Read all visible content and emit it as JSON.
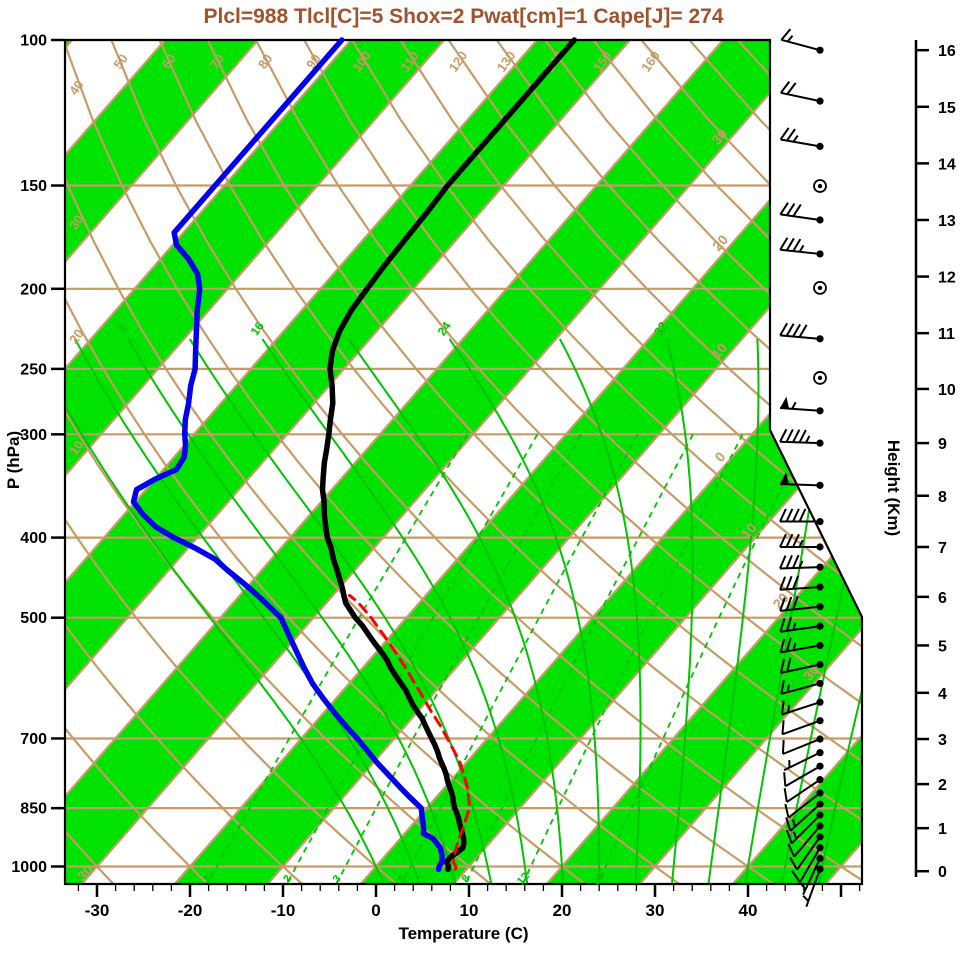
{
  "title": {
    "text": "Plcl=988 Tlcl[C]=5 Shox=2 Pwat[cm]=1 Cape[J]= 274"
  },
  "axis_labels": {
    "x": "Temperature (C)",
    "y_left": "P (hPa)",
    "y_right": "Height (Km)"
  },
  "colors": {
    "title": "#A0522D",
    "tan": "#C79B66",
    "green_fill": "#00E200",
    "green_line": "#00C400",
    "temperature": "#000000",
    "dewpoint": "#0000EE",
    "parcel": "#FF0000",
    "axis": "#000000"
  },
  "chart_data": {
    "type": "skewt-logp",
    "stats": {
      "plcl_hPa": 988,
      "tlcl_C": 5,
      "shox": 2,
      "pwat_cm": 1,
      "cape_J": 274
    },
    "pressure_range_hPa": [
      100,
      1050
    ],
    "pressure_ticks": [
      100,
      150,
      200,
      250,
      300,
      400,
      500,
      700,
      850,
      1000
    ],
    "temp_ticks": [
      -30,
      -20,
      -10,
      0,
      10,
      20,
      30,
      40
    ],
    "height_ticks_km": [
      0,
      1,
      2,
      3,
      4,
      5,
      6,
      7,
      8,
      9,
      10,
      11,
      12,
      13,
      14,
      15,
      16
    ],
    "isotherm_step": 10,
    "shade_band": 20,
    "dry_adiabats": {
      "min": -40,
      "max": 200,
      "step": 10,
      "labels": [
        10,
        20,
        30,
        40,
        50,
        60,
        70,
        80,
        90,
        100,
        110,
        120,
        130,
        140,
        150,
        160
      ]
    },
    "moist_adiabats": {
      "values": [
        0,
        4,
        8,
        12,
        16,
        20,
        24,
        28,
        32,
        36,
        40,
        44,
        48
      ],
      "labels": [
        8,
        16,
        24,
        32
      ],
      "top_p": 230
    },
    "mixing_ratio": {
      "values": [
        1,
        2,
        3,
        5,
        8,
        12,
        20
      ],
      "top_p": 300
    },
    "isotherm_labels": [
      {
        "t": -30,
        "s": "30"
      },
      {
        "t": -20,
        "s": "20"
      },
      {
        "t": -10,
        "s": "10"
      },
      {
        "t": 0,
        "s": "0"
      },
      {
        "t": 10,
        "s": "10"
      },
      {
        "t": 20,
        "s": "20"
      },
      {
        "t": 30,
        "s": "30"
      },
      {
        "t": -30,
        "s": "30",
        "edge": "bottom"
      }
    ],
    "temperature_profile": [
      [
        1008,
        8
      ],
      [
        1000,
        7.8
      ],
      [
        988,
        7.2
      ],
      [
        975,
        7.1
      ],
      [
        962,
        7.4
      ],
      [
        950,
        7.6
      ],
      [
        938,
        7.3
      ],
      [
        925,
        6.8
      ],
      [
        912,
        6.2
      ],
      [
        900,
        5.6
      ],
      [
        888,
        5
      ],
      [
        875,
        4.4
      ],
      [
        862,
        3.7
      ],
      [
        850,
        3
      ],
      [
        838,
        2.4
      ],
      [
        825,
        1.8
      ],
      [
        812,
        1.1
      ],
      [
        800,
        0.4
      ],
      [
        788,
        -0.3
      ],
      [
        775,
        -1
      ],
      [
        762,
        -1.8
      ],
      [
        750,
        -2.6
      ],
      [
        738,
        -3.4
      ],
      [
        725,
        -4.2
      ],
      [
        712,
        -5.1
      ],
      [
        700,
        -6
      ],
      [
        688,
        -6.9
      ],
      [
        675,
        -7.9
      ],
      [
        662,
        -8.9
      ],
      [
        650,
        -10
      ],
      [
        638,
        -11.1
      ],
      [
        625,
        -12.2
      ],
      [
        612,
        -13.3
      ],
      [
        600,
        -14.5
      ],
      [
        588,
        -15.7
      ],
      [
        575,
        -17
      ],
      [
        562,
        -18.2
      ],
      [
        550,
        -19.5
      ],
      [
        538,
        -20.9
      ],
      [
        525,
        -22.4
      ],
      [
        512,
        -23.9
      ],
      [
        500,
        -25.5
      ],
      [
        490,
        -26.7
      ],
      [
        480,
        -27.9
      ],
      [
        470,
        -28.8
      ],
      [
        460,
        -29.7
      ],
      [
        450,
        -30.7
      ],
      [
        438,
        -31.9
      ],
      [
        425,
        -33.3
      ],
      [
        412,
        -34.6
      ],
      [
        400,
        -36
      ],
      [
        388,
        -37.2
      ],
      [
        375,
        -38.5
      ],
      [
        362,
        -39.7
      ],
      [
        350,
        -41
      ],
      [
        338,
        -42.1
      ],
      [
        325,
        -43.3
      ],
      [
        312,
        -44.4
      ],
      [
        300,
        -45.5
      ],
      [
        288,
        -46.7
      ],
      [
        275,
        -48
      ],
      [
        262,
        -49.7
      ],
      [
        250,
        -51.5
      ],
      [
        238,
        -52.9
      ],
      [
        225,
        -54
      ],
      [
        212,
        -54.7
      ],
      [
        200,
        -55
      ],
      [
        188,
        -55.3
      ],
      [
        175,
        -55.5
      ],
      [
        162,
        -55.7
      ],
      [
        150,
        -56
      ],
      [
        137,
        -56
      ],
      [
        125,
        -56
      ],
      [
        112,
        -56
      ],
      [
        100,
        -56
      ]
    ],
    "dewpoint_profile": [
      [
        1008,
        7
      ],
      [
        1000,
        6.8
      ],
      [
        985,
        6.6
      ],
      [
        968,
        6
      ],
      [
        950,
        5.2
      ],
      [
        935,
        4.2
      ],
      [
        925,
        3.5
      ],
      [
        912,
        2
      ],
      [
        900,
        1.6
      ],
      [
        875,
        0.5
      ],
      [
        850,
        -0.6
      ],
      [
        825,
        -2.8
      ],
      [
        800,
        -5
      ],
      [
        775,
        -7.2
      ],
      [
        750,
        -9.5
      ],
      [
        725,
        -11.7
      ],
      [
        700,
        -14
      ],
      [
        675,
        -16.5
      ],
      [
        650,
        -19
      ],
      [
        625,
        -21.5
      ],
      [
        600,
        -24
      ],
      [
        575,
        -26.3
      ],
      [
        550,
        -28.6
      ],
      [
        525,
        -31
      ],
      [
        500,
        -33.5
      ],
      [
        488,
        -35.3
      ],
      [
        475,
        -37.3
      ],
      [
        462,
        -39.4
      ],
      [
        450,
        -41.5
      ],
      [
        438,
        -43.7
      ],
      [
        425,
        -46
      ],
      [
        412,
        -49.2
      ],
      [
        400,
        -52.5
      ],
      [
        388,
        -55.5
      ],
      [
        375,
        -58
      ],
      [
        362,
        -60.2
      ],
      [
        350,
        -61
      ],
      [
        340,
        -60
      ],
      [
        331,
        -58.6
      ],
      [
        320,
        -58.9
      ],
      [
        310,
        -59.8
      ],
      [
        300,
        -61
      ],
      [
        288,
        -62.3
      ],
      [
        275,
        -63.5
      ],
      [
        262,
        -64.9
      ],
      [
        250,
        -66
      ],
      [
        238,
        -67.6
      ],
      [
        225,
        -69.4
      ],
      [
        212,
        -71.3
      ],
      [
        200,
        -73
      ],
      [
        192,
        -74.6
      ],
      [
        184,
        -77
      ],
      [
        177,
        -79.6
      ],
      [
        171,
        -81
      ],
      [
        160,
        -81
      ],
      [
        150,
        -81
      ],
      [
        137,
        -81
      ],
      [
        125,
        -81
      ],
      [
        112,
        -81
      ],
      [
        100,
        -81
      ]
    ],
    "parcel_profile": [
      [
        1008,
        8.8
      ],
      [
        1000,
        8.6
      ],
      [
        988,
        7.9
      ],
      [
        975,
        7.5
      ],
      [
        950,
        6.9
      ],
      [
        925,
        6.3
      ],
      [
        900,
        5.8
      ],
      [
        875,
        5.2
      ],
      [
        850,
        4.6
      ],
      [
        825,
        3.5
      ],
      [
        800,
        2.3
      ],
      [
        775,
        0.9
      ],
      [
        750,
        -0.6
      ],
      [
        725,
        -2.4
      ],
      [
        700,
        -4.3
      ],
      [
        675,
        -6.3
      ],
      [
        650,
        -8.5
      ],
      [
        625,
        -10.7
      ],
      [
        600,
        -13
      ],
      [
        575,
        -15.4
      ],
      [
        550,
        -18
      ],
      [
        525,
        -20.8
      ],
      [
        500,
        -23.8
      ],
      [
        488,
        -25.4
      ],
      [
        478,
        -26.8
      ],
      [
        470,
        -28.2
      ]
    ],
    "winds": [
      {
        "km": 0.05,
        "kt": 5,
        "dir": 200
      },
      {
        "km": 0.3,
        "kt": 5,
        "dir": 205
      },
      {
        "km": 0.55,
        "kt": 10,
        "dir": 210
      },
      {
        "km": 0.8,
        "kt": 10,
        "dir": 215
      },
      {
        "km": 1.05,
        "kt": 10,
        "dir": 220
      },
      {
        "km": 1.3,
        "kt": 15,
        "dir": 225
      },
      {
        "km": 1.55,
        "kt": 15,
        "dir": 228
      },
      {
        "km": 1.8,
        "kt": 10,
        "dir": 232
      },
      {
        "km": 2.1,
        "kt": 10,
        "dir": 236
      },
      {
        "km": 2.4,
        "kt": 10,
        "dir": 240
      },
      {
        "km": 2.7,
        "kt": 5,
        "dir": 244
      },
      {
        "km": 3,
        "kt": 10,
        "dir": 248
      },
      {
        "km": 3.4,
        "kt": 10,
        "dir": 250
      },
      {
        "km": 3.8,
        "kt": 15,
        "dir": 252
      },
      {
        "km": 4.2,
        "kt": 15,
        "dir": 255
      },
      {
        "km": 4.6,
        "kt": 20,
        "dir": 258
      },
      {
        "km": 5,
        "kt": 25,
        "dir": 260
      },
      {
        "km": 5.4,
        "kt": 25,
        "dir": 262
      },
      {
        "km": 5.8,
        "kt": 30,
        "dir": 264
      },
      {
        "km": 6.2,
        "kt": 30,
        "dir": 266
      },
      {
        "km": 6.6,
        "kt": 35,
        "dir": 268
      },
      {
        "km": 7,
        "kt": 35,
        "dir": 270
      },
      {
        "km": 7.5,
        "kt": 40,
        "dir": 270
      },
      {
        "km": 8.2,
        "kt": 50,
        "dir": 272
      },
      {
        "km": 9,
        "kt": 45,
        "dir": 272
      },
      {
        "km": 9.6,
        "kt": 55,
        "dir": 274
      },
      {
        "km": 10.2,
        "calm": true
      },
      {
        "km": 10.9,
        "kt": 40,
        "dir": 275
      },
      {
        "km": 11.8,
        "calm": true
      },
      {
        "km": 12.4,
        "kt": 35,
        "dir": 276
      },
      {
        "km": 13,
        "kt": 30,
        "dir": 278
      },
      {
        "km": 13.6,
        "calm": true
      },
      {
        "km": 14.3,
        "kt": 25,
        "dir": 280
      },
      {
        "km": 15.1,
        "kt": 20,
        "dir": 282
      },
      {
        "km": 16,
        "kt": 15,
        "dir": 285
      }
    ]
  }
}
